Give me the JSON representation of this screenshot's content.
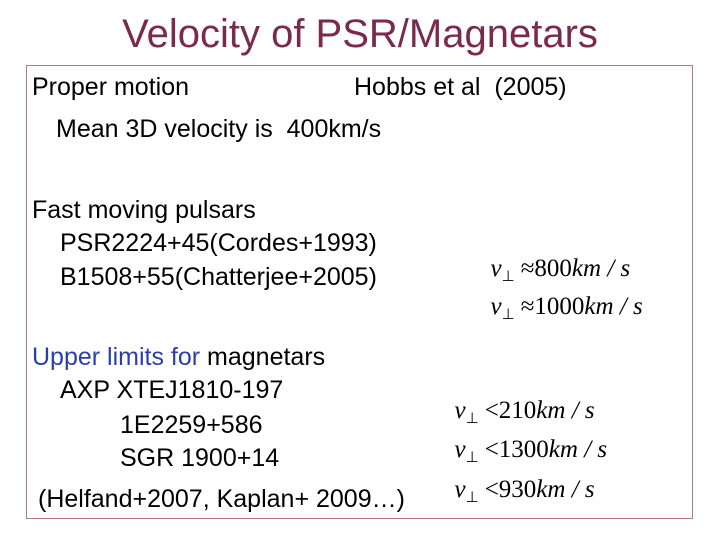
{
  "title": "Velocity of  PSR/Magnetars",
  "proper_motion": {
    "label": "Proper motion",
    "reference": "Hobbs et al  (2005)",
    "mean_velocity": "Mean 3D velocity is  400km/s"
  },
  "fast_pulsars": {
    "heading": "Fast moving pulsars",
    "items": [
      {
        "name": "PSR2224+45(Cordes+1993)",
        "relation": "≈",
        "value": "800",
        "unit": "km / s"
      },
      {
        "name": "B1508+55(Chatterjee+2005)",
        "relation": "≈",
        "value": "1000",
        "unit": "km / s"
      }
    ]
  },
  "magnetars": {
    "heading_colored": "Upper limits for",
    "heading_rest": " magnetars",
    "items": [
      {
        "name": "AXP XTEJ1810-197",
        "relation": "<",
        "value": "210",
        "unit": "km / s"
      },
      {
        "name": "1E2259+586",
        "relation": "<",
        "value": "1300",
        "unit": "km / s"
      },
      {
        "name": "SGR 1900+14",
        "relation": "<",
        "value": "930",
        "unit": "km / s"
      }
    ],
    "references": "(Helfand+2007, Kaplan+ 2009…)"
  },
  "symbols": {
    "velocity": "v",
    "perp": "⊥"
  },
  "colors": {
    "title": "#7a2a4e",
    "highlight": "#2a3fa8",
    "frame": "#b07a85"
  }
}
